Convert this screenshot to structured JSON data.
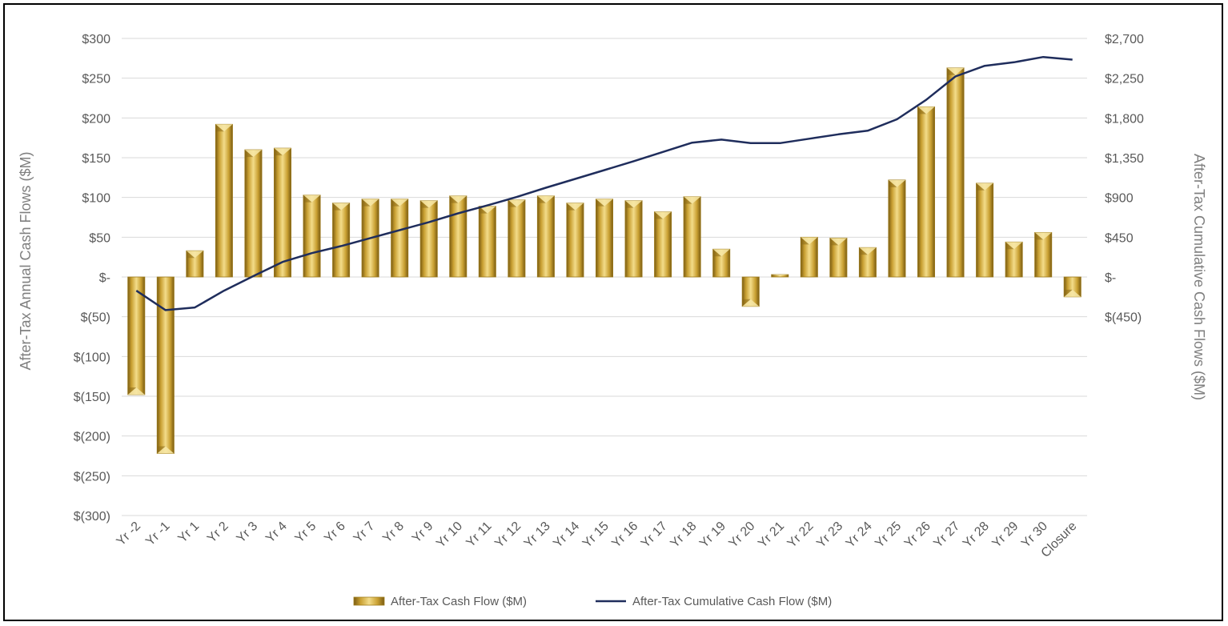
{
  "chart_data": {
    "type": "bar",
    "categories": [
      "Yr -2",
      "Yr -1",
      "Yr 1",
      "Yr 2",
      "Yr 3",
      "Yr 4",
      "Yr 5",
      "Yr 6",
      "Yr 7",
      "Yr 8",
      "Yr 9",
      "Yr 10",
      "Yr 11",
      "Yr 12",
      "Yr 13",
      "Yr 14",
      "Yr 15",
      "Yr 16",
      "Yr 17",
      "Yr 18",
      "Yr 19",
      "Yr 20",
      "Yr 21",
      "Yr 22",
      "Yr 23",
      "Yr 24",
      "Yr 25",
      "Yr 26",
      "Yr 27",
      "Yr 28",
      "Yr 29",
      "Yr 30",
      "Closure"
    ],
    "series": [
      {
        "name": "After-Tax Cash Flow ($M)",
        "kind": "bar",
        "axis": "left",
        "values": [
          -148,
          -222,
          33,
          192,
          160,
          162,
          103,
          93,
          98,
          98,
          96,
          102,
          89,
          97,
          102,
          93,
          98,
          96,
          82,
          101,
          35,
          -37,
          3,
          50,
          49,
          37,
          122,
          214,
          263,
          118,
          44,
          56,
          -25
        ]
      },
      {
        "name": "After-Tax Cumulative Cash Flow ($M)",
        "kind": "line",
        "axis": "right",
        "values": [
          -155,
          -375,
          -345,
          -155,
          10,
          170,
          270,
          350,
          440,
          530,
          620,
          720,
          810,
          905,
          1010,
          1110,
          1210,
          1310,
          1415,
          1520,
          1555,
          1515,
          1515,
          1565,
          1615,
          1655,
          1785,
          2005,
          2270,
          2390,
          2430,
          2490,
          2460
        ]
      }
    ],
    "y_left": {
      "label": "After-Tax Annual Cash Flows ($M)",
      "ylim": [
        -300,
        300
      ],
      "ticks": [
        300,
        250,
        200,
        150,
        100,
        50,
        0,
        -50,
        -100,
        -150,
        -200,
        -250,
        -300
      ],
      "tick_labels": [
        "$300",
        "$250",
        "$200",
        "$150",
        "$100",
        "$50",
        "$-",
        "$(50)",
        "$(100)",
        "$(150)",
        "$(200)",
        "$(250)",
        "$(300)"
      ]
    },
    "y_right": {
      "label": "After-Tax Cumulative Cash Flows ($M)",
      "ylim": [
        -2700,
        2700
      ],
      "ticks": [
        2700,
        2250,
        1800,
        1350,
        900,
        450,
        0,
        -450
      ],
      "tick_labels": [
        "$2,700",
        "$2,250",
        "$1,800",
        "$1,350",
        "$900",
        "$450",
        "$-",
        "$(450)"
      ]
    },
    "grid": true,
    "legend": "bottom",
    "colors": {
      "bar_light": "#f3dc8a",
      "bar_mid": "#c9a032",
      "bar_dark": "#7a5c12",
      "line": "#1f2d5c",
      "grid": "#d9d9d9"
    }
  }
}
